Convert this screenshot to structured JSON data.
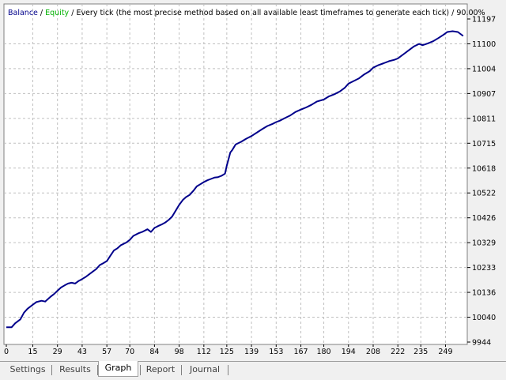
{
  "window": {
    "tabs": [
      {
        "label": "Settings",
        "active": false
      },
      {
        "label": "Results",
        "active": false
      },
      {
        "label": "Graph",
        "active": true
      },
      {
        "label": "Report",
        "active": false
      },
      {
        "label": "Journal",
        "active": false
      }
    ]
  },
  "legend": {
    "balance": "Balance",
    "sep1": " / ",
    "equity": "Equity",
    "sep2": " / ",
    "method": "Every tick (the most precise method based on all available least timeframes to generate each tick)",
    "sep3": " / ",
    "quality": "90.00%",
    "balance_color": "#00008b",
    "equity_color": "#00b000"
  },
  "chart_data": {
    "type": "line",
    "title": "",
    "xlabel": "",
    "ylabel": "",
    "grid": true,
    "x_ticks": [
      "0",
      "15",
      "29",
      "43",
      "57",
      "70",
      "84",
      "98",
      "112",
      "125",
      "139",
      "153",
      "167",
      "180",
      "194",
      "208",
      "222",
      "235",
      "249"
    ],
    "y_ticks": [
      "11197",
      "11100",
      "11004",
      "10907",
      "10811",
      "10715",
      "10618",
      "10522",
      "10426",
      "10329",
      "10233",
      "10136",
      "10040",
      "9944"
    ],
    "xlim": [
      0,
      260
    ],
    "ylim": [
      9944,
      11197
    ],
    "series": [
      {
        "name": "Balance",
        "color": "#00008b",
        "x": [
          0,
          3,
          5,
          8,
          10,
          12,
          15,
          17,
          20,
          22,
          25,
          27,
          29,
          31,
          33,
          35,
          37,
          39,
          41,
          43,
          45,
          47,
          49,
          51,
          53,
          55,
          57,
          59,
          61,
          63,
          65,
          68,
          70,
          72,
          75,
          77,
          80,
          82,
          84,
          86,
          88,
          90,
          92,
          94,
          96,
          98,
          100,
          102,
          104,
          106,
          108,
          110,
          112,
          114,
          116,
          118,
          120,
          122,
          124,
          125,
          126,
          127,
          128,
          130,
          133,
          136,
          139,
          142,
          145,
          148,
          151,
          153,
          155,
          158,
          161,
          164,
          167,
          170,
          173,
          176,
          180,
          183,
          186,
          189,
          192,
          194,
          197,
          200,
          203,
          206,
          208,
          211,
          214,
          217,
          220,
          222,
          225,
          228,
          231,
          234,
          236,
          239,
          242,
          245,
          248,
          250,
          253,
          256,
          259
        ],
        "y": [
          10000,
          10000,
          10015,
          10030,
          10055,
          10070,
          10085,
          10095,
          10100,
          10097,
          10115,
          10125,
          10138,
          10150,
          10158,
          10165,
          10168,
          10165,
          10175,
          10182,
          10190,
          10200,
          10210,
          10220,
          10235,
          10242,
          10250,
          10270,
          10290,
          10298,
          10310,
          10320,
          10330,
          10345,
          10355,
          10360,
          10370,
          10360,
          10375,
          10382,
          10388,
          10395,
          10405,
          10418,
          10440,
          10462,
          10480,
          10492,
          10500,
          10515,
          10532,
          10540,
          10548,
          10555,
          10560,
          10565,
          10567,
          10572,
          10580,
          10610,
          10635,
          10660,
          10668,
          10690,
          10700,
          10712,
          10722,
          10735,
          10748,
          10760,
          10768,
          10775,
          10780,
          10790,
          10800,
          10813,
          10822,
          10830,
          10840,
          10852,
          10860,
          10872,
          10880,
          10890,
          10905,
          10920,
          10930,
          10940,
          10955,
          10967,
          10980,
          10990,
          10997,
          11005,
          11010,
          11015,
          11030,
          11045,
          11060,
          11070,
          11065,
          11072,
          11080,
          11092,
          11105,
          11115,
          11118,
          11115,
          11100
        ]
      }
    ]
  }
}
